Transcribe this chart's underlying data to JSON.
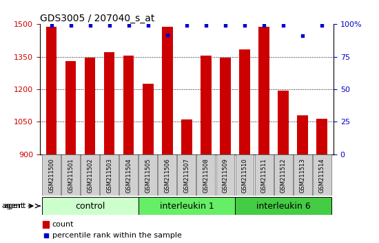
{
  "title": "GDS3005 / 207040_s_at",
  "samples": [
    "GSM211500",
    "GSM211501",
    "GSM211502",
    "GSM211503",
    "GSM211504",
    "GSM211505",
    "GSM211506",
    "GSM211507",
    "GSM211508",
    "GSM211509",
    "GSM211510",
    "GSM211511",
    "GSM211512",
    "GSM211513",
    "GSM211514"
  ],
  "counts": [
    1490,
    1330,
    1345,
    1370,
    1355,
    1225,
    1490,
    1060,
    1355,
    1345,
    1385,
    1490,
    1195,
    1080,
    1065
  ],
  "percentile_ranks": [
    99,
    99,
    99,
    99,
    99,
    99,
    92,
    99,
    99,
    99,
    99,
    99,
    99,
    91,
    99
  ],
  "ylim_left": [
    900,
    1500
  ],
  "ylim_right": [
    0,
    100
  ],
  "yticks_left": [
    900,
    1050,
    1200,
    1350,
    1500
  ],
  "yticks_right": [
    0,
    25,
    50,
    75,
    100
  ],
  "bar_color": "#cc0000",
  "dot_color": "#0000cc",
  "groups": [
    {
      "label": "control",
      "start": 0,
      "end": 5,
      "color": "#ccffcc"
    },
    {
      "label": "interleukin 1",
      "start": 5,
      "end": 10,
      "color": "#66ee66"
    },
    {
      "label": "interleukin 6",
      "start": 10,
      "end": 15,
      "color": "#44cc44"
    }
  ],
  "sample_box_color": "#d0d0d0",
  "legend_count_color": "#cc0000",
  "legend_dot_color": "#0000cc",
  "title_fontsize": 10,
  "tick_fontsize": 8,
  "group_label_fontsize": 9,
  "sample_fontsize": 6,
  "legend_fontsize": 8
}
